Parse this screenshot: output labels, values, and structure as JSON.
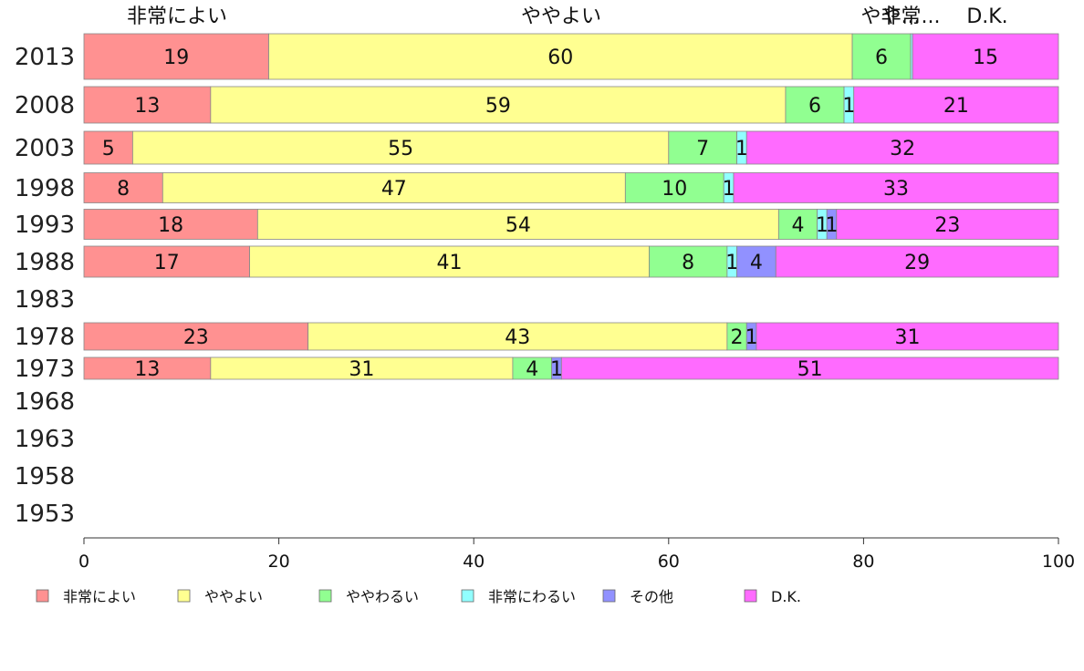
{
  "chart_data": {
    "type": "bar",
    "orientation": "horizontal",
    "stacked": true,
    "xlim": [
      0,
      100
    ],
    "xticks": [
      0,
      20,
      40,
      60,
      80,
      100
    ],
    "grid": false,
    "legend_position": "bottom",
    "top_category_labels": [
      "非常によい",
      "ややよい",
      "やや...",
      "非常...",
      "D.K."
    ],
    "series": [
      {
        "name": "非常によい",
        "color": "#ff9191"
      },
      {
        "name": "ややよい",
        "color": "#ffff91"
      },
      {
        "name": "ややわるい",
        "color": "#91ff91"
      },
      {
        "name": "非常にわるい",
        "color": "#91ffff"
      },
      {
        "name": "その他",
        "color": "#9191ff"
      },
      {
        "name": "D.K.",
        "color": "#ff6bff"
      }
    ],
    "rows": [
      {
        "year": "2013",
        "values": [
          19,
          60,
          6,
          0.2,
          0,
          15
        ],
        "labels": [
          "19",
          "60",
          "6",
          "",
          "",
          "15"
        ]
      },
      {
        "year": "2008",
        "values": [
          13,
          59,
          6,
          1,
          0,
          21
        ],
        "labels": [
          "13",
          "59",
          "6",
          "1",
          "",
          "21"
        ]
      },
      {
        "year": "2003",
        "values": [
          5,
          55,
          7,
          1,
          0,
          32
        ],
        "labels": [
          "5",
          "55",
          "7",
          "1",
          "",
          "32"
        ]
      },
      {
        "year": "1998",
        "values": [
          8,
          47,
          10,
          1,
          0,
          33
        ],
        "labels": [
          "8",
          "47",
          "10",
          "1",
          "",
          "33"
        ]
      },
      {
        "year": "1993",
        "values": [
          18,
          54,
          4,
          1,
          1,
          23
        ],
        "labels": [
          "18",
          "54",
          "4",
          "1",
          "1",
          "23"
        ]
      },
      {
        "year": "1988",
        "values": [
          17,
          41,
          8,
          1,
          4,
          29
        ],
        "labels": [
          "17",
          "41",
          "8",
          "1",
          "4",
          "29"
        ]
      },
      {
        "year": "1983",
        "values": [],
        "labels": []
      },
      {
        "year": "1978",
        "values": [
          23,
          43,
          2,
          0,
          1,
          31
        ],
        "labels": [
          "23",
          "43",
          "2",
          "",
          "1",
          "31"
        ]
      },
      {
        "year": "1973",
        "values": [
          13,
          31,
          4,
          0,
          1,
          51
        ],
        "labels": [
          "13",
          "31",
          "4",
          "",
          "1",
          "51"
        ]
      },
      {
        "year": "1968",
        "values": [],
        "labels": []
      },
      {
        "year": "1963",
        "values": [],
        "labels": []
      },
      {
        "year": "1958",
        "values": [],
        "labels": []
      },
      {
        "year": "1953",
        "values": [],
        "labels": []
      }
    ]
  }
}
